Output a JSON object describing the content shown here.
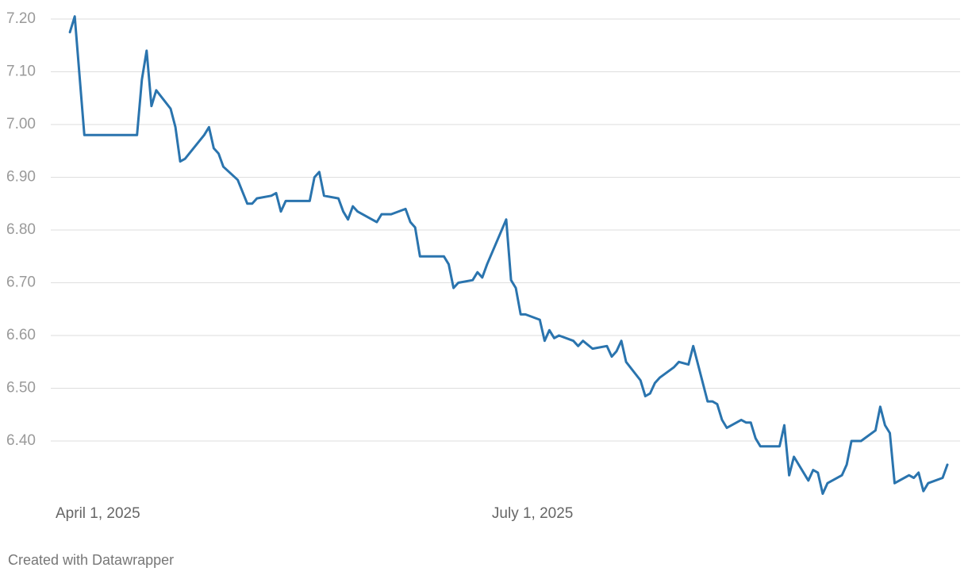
{
  "chart_data": {
    "type": "line",
    "x": [
      "2025-04-04",
      "2025-04-05",
      "2025-04-07",
      "2025-04-18",
      "2025-04-19",
      "2025-04-20",
      "2025-04-21",
      "2025-04-22",
      "2025-04-25",
      "2025-04-26",
      "2025-04-27",
      "2025-04-28",
      "2025-05-02",
      "2025-05-03",
      "2025-05-04",
      "2025-05-05",
      "2025-05-06",
      "2025-05-09",
      "2025-05-11",
      "2025-05-12",
      "2025-05-13",
      "2025-05-16",
      "2025-05-17",
      "2025-05-18",
      "2025-05-19",
      "2025-05-24",
      "2025-05-25",
      "2025-05-26",
      "2025-05-27",
      "2025-05-30",
      "2025-05-31",
      "2025-06-01",
      "2025-06-02",
      "2025-06-03",
      "2025-06-06",
      "2025-06-07",
      "2025-06-08",
      "2025-06-10",
      "2025-06-13",
      "2025-06-14",
      "2025-06-15",
      "2025-06-16",
      "2025-06-21",
      "2025-06-22",
      "2025-06-23",
      "2025-06-24",
      "2025-06-27",
      "2025-06-28",
      "2025-06-29",
      "2025-06-30",
      "2025-07-04",
      "2025-07-05",
      "2025-07-06",
      "2025-07-07",
      "2025-07-08",
      "2025-07-11",
      "2025-07-12",
      "2025-07-13",
      "2025-07-14",
      "2025-07-15",
      "2025-07-18",
      "2025-07-19",
      "2025-07-20",
      "2025-07-22",
      "2025-07-25",
      "2025-07-26",
      "2025-07-27",
      "2025-07-28",
      "2025-07-29",
      "2025-08-01",
      "2025-08-02",
      "2025-08-03",
      "2025-08-04",
      "2025-08-05",
      "2025-08-08",
      "2025-08-09",
      "2025-08-11",
      "2025-08-12",
      "2025-08-15",
      "2025-08-16",
      "2025-08-17",
      "2025-08-18",
      "2025-08-19",
      "2025-08-22",
      "2025-08-23",
      "2025-08-24",
      "2025-08-25",
      "2025-08-26",
      "2025-08-29",
      "2025-08-30",
      "2025-08-31",
      "2025-09-01",
      "2025-09-02",
      "2025-09-05",
      "2025-09-06",
      "2025-09-07",
      "2025-09-08",
      "2025-09-09",
      "2025-09-12",
      "2025-09-13",
      "2025-09-14",
      "2025-09-16",
      "2025-09-19",
      "2025-09-20",
      "2025-09-21",
      "2025-09-22",
      "2025-09-23",
      "2025-09-26",
      "2025-09-27",
      "2025-09-28",
      "2025-09-29",
      "2025-09-30",
      "2025-10-03",
      "2025-10-04"
    ],
    "series": [
      {
        "color": "#2a74ae",
        "values": [
          7.175,
          7.205,
          6.98,
          6.98,
          7.085,
          7.14,
          7.035,
          7.065,
          7.03,
          6.995,
          6.93,
          6.935,
          6.98,
          6.995,
          6.955,
          6.945,
          6.92,
          6.895,
          6.85,
          6.85,
          6.86,
          6.865,
          6.87,
          6.835,
          6.855,
          6.855,
          6.9,
          6.91,
          6.865,
          6.86,
          6.835,
          6.82,
          6.845,
          6.835,
          6.82,
          6.815,
          6.83,
          6.83,
          6.84,
          6.815,
          6.805,
          6.75,
          6.75,
          6.735,
          6.69,
          6.7,
          6.705,
          6.72,
          6.71,
          6.735,
          6.82,
          6.705,
          6.69,
          6.64,
          6.64,
          6.63,
          6.59,
          6.61,
          6.595,
          6.6,
          6.59,
          6.58,
          6.59,
          6.575,
          6.58,
          6.56,
          6.57,
          6.59,
          6.55,
          6.515,
          6.485,
          6.49,
          6.51,
          6.52,
          6.54,
          6.55,
          6.545,
          6.58,
          6.475,
          6.475,
          6.47,
          6.44,
          6.425,
          6.44,
          6.435,
          6.435,
          6.405,
          6.39,
          6.39,
          6.39,
          6.43,
          6.335,
          6.37,
          6.325,
          6.345,
          6.34,
          6.3,
          6.32,
          6.335,
          6.355,
          6.4,
          6.4,
          6.42,
          6.465,
          6.43,
          6.415,
          6.32,
          6.335,
          6.33,
          6.34,
          6.305,
          6.32,
          6.33,
          6.355
        ]
      }
    ],
    "xlim": [
      "2025-04-01",
      "2025-10-04"
    ],
    "xticks": [
      {
        "value": "2025-04-01",
        "label": "April 1, 2025"
      },
      {
        "value": "2025-07-01",
        "label": "July 1, 2025"
      }
    ],
    "ylim": [
      6.3,
      7.2
    ],
    "yticks": [
      {
        "value": 6.4,
        "label": "6.40"
      },
      {
        "value": 6.5,
        "label": "6.50"
      },
      {
        "value": 6.6,
        "label": "6.60"
      },
      {
        "value": 6.7,
        "label": "6.70"
      },
      {
        "value": 6.8,
        "label": "6.80"
      },
      {
        "value": 6.9,
        "label": "6.90"
      },
      {
        "value": 7.0,
        "label": "7.00"
      },
      {
        "value": 7.1,
        "label": "7.10"
      },
      {
        "value": 7.2,
        "label": "7.20"
      }
    ],
    "grid": true,
    "source": "Created with Datawrapper"
  }
}
